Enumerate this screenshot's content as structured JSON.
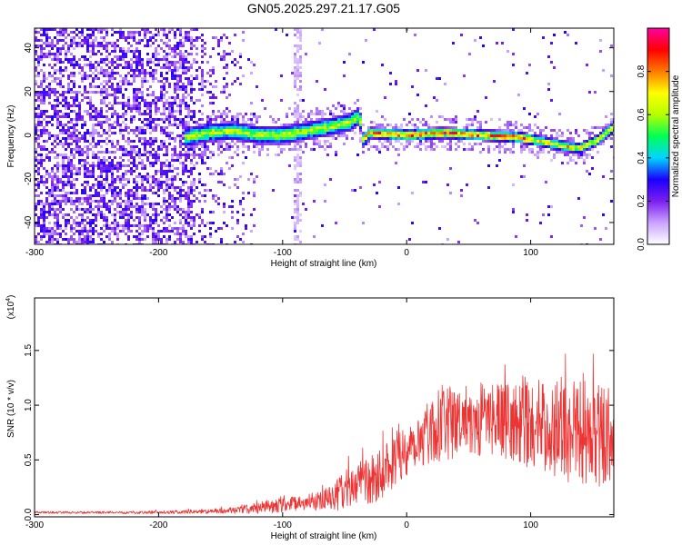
{
  "figure_title": "GN05.2025.297.21.17.G05",
  "chart_data": [
    {
      "type": "heatmap",
      "title": "GN05.2025.297.21.17.G05",
      "xlabel": "Height of straight line (km)",
      "ylabel": "Frequency (Hz)",
      "xlim": [
        -300,
        167
      ],
      "ylim": [
        -50,
        49
      ],
      "xticks": [
        -300,
        -200,
        -100,
        0,
        100
      ],
      "xtick_labels": [
        "-300",
        "-200",
        "-100",
        "0",
        "100"
      ],
      "yticks": [
        -40,
        -20,
        0,
        20,
        40
      ],
      "ytick_labels": [
        "-40",
        "-20",
        "0",
        "20",
        "40"
      ],
      "ridge": {
        "description": "narrow-band signal near 0 Hz",
        "x": [
          -177,
          -160,
          -140,
          -120,
          -100,
          -80,
          -60,
          -45,
          -38,
          -35,
          -30,
          0,
          30,
          60,
          90,
          110,
          125,
          140,
          155,
          167
        ],
        "frequency_hz": [
          -1,
          1,
          2,
          0,
          0,
          2,
          4,
          6,
          9,
          -2,
          1,
          0,
          1,
          0,
          -1,
          -3,
          -5,
          -6,
          -2,
          4
        ]
      },
      "colorbar": {
        "label": "Normalized spectral amplitude",
        "range": [
          0,
          1
        ],
        "ticks": [
          0.0,
          0.2,
          0.4,
          0.6,
          0.8
        ],
        "tick_labels": [
          "0.0",
          "0.2",
          "0.4",
          "0.6",
          "0.8"
        ],
        "colormap": [
          "#ffffff",
          "#c9a3ff",
          "#7c1ef0",
          "#1a00ff",
          "#00d6ff",
          "#00ff55",
          "#b6ff00",
          "#ffff00",
          "#ff7a00",
          "#ff0000",
          "#ff00a0"
        ]
      }
    },
    {
      "type": "line",
      "xlabel": "Height of straight line (km)",
      "ylabel": "SNR (10 * v/v)",
      "y_multiplier": "(x10",
      "y_multiplier_exp": "4",
      "y_multiplier_close": ")",
      "xlim": [
        -300,
        167
      ],
      "ylim": [
        -0.02,
        1.98
      ],
      "xticks": [
        -300,
        -200,
        -100,
        0,
        100
      ],
      "xtick_labels": [
        "-300",
        "-200",
        "-100",
        "0",
        "100"
      ],
      "yticks": [
        0.0,
        0.5,
        1.0,
        1.5
      ],
      "ytick_labels": [
        "0.0",
        "0.5",
        "1.0",
        "1.5"
      ],
      "series": [
        {
          "name": "SNR",
          "color": "#ee3333",
          "envelope_x": [
            -300,
            -250,
            -200,
            -160,
            -140,
            -120,
            -100,
            -80,
            -60,
            -50,
            -40,
            -30,
            -20,
            0,
            20,
            40,
            60,
            80,
            100,
            120,
            140,
            155,
            167
          ],
          "envelope_mean": [
            0.02,
            0.02,
            0.02,
            0.03,
            0.04,
            0.06,
            0.1,
            0.1,
            0.15,
            0.22,
            0.28,
            0.3,
            0.4,
            0.6,
            0.78,
            0.85,
            0.88,
            0.85,
            0.82,
            0.8,
            0.78,
            0.75,
            0.7
          ],
          "envelope_amp": [
            0.01,
            0.01,
            0.015,
            0.02,
            0.03,
            0.05,
            0.08,
            0.06,
            0.12,
            0.18,
            0.2,
            0.22,
            0.25,
            0.25,
            0.3,
            0.35,
            0.35,
            0.35,
            0.4,
            0.45,
            0.55,
            0.5,
            0.4
          ]
        }
      ]
    }
  ],
  "colors": {
    "axis": "#000000",
    "signal": "#ee3333"
  }
}
